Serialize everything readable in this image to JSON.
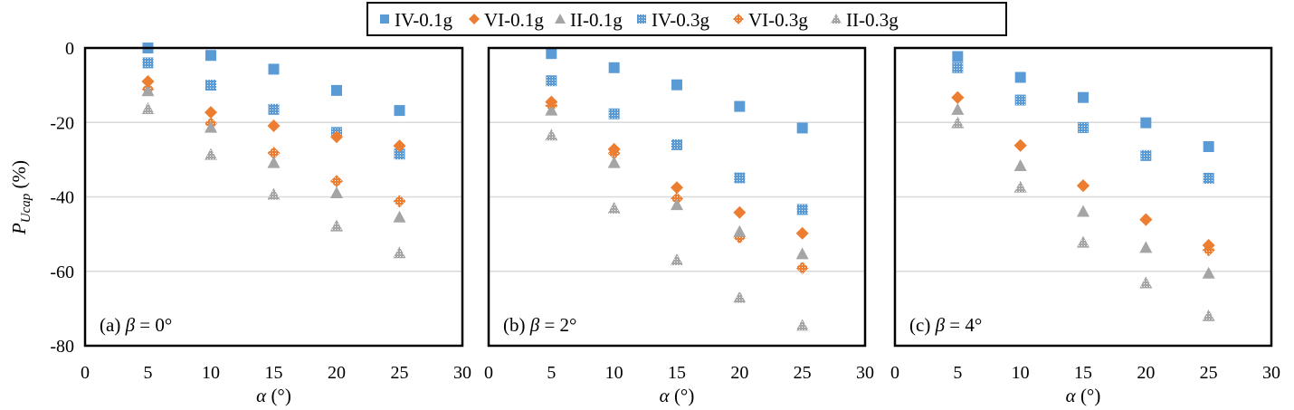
{
  "chart_data": [
    {
      "type": "scatter",
      "panel_label": "(a)",
      "panel_param": "β = 0°",
      "panel_label_text": "(a) β = 0°",
      "xlabel": "α (°)",
      "ylabel": "P_Ucap (%)",
      "xlim": [
        0,
        30
      ],
      "ylim": [
        -80,
        0
      ],
      "xticks": [
        0,
        5,
        10,
        15,
        20,
        25,
        30
      ],
      "yticks": [
        0,
        -20,
        -40,
        -60,
        -80
      ],
      "grid": "horizontal",
      "x": [
        5,
        10,
        15,
        20,
        25
      ],
      "series": [
        {
          "name": "IV-0.1g",
          "values": [
            0,
            -2,
            -5.7,
            -11.4,
            -16.8
          ]
        },
        {
          "name": "VI-0.1g",
          "values": [
            -9,
            -17.3,
            -20.9,
            -23.9,
            -26.3
          ]
        },
        {
          "name": "II-0.1g",
          "values": [
            -11.5,
            -21.3,
            -30.8,
            -38.9,
            -45.4
          ]
        },
        {
          "name": "IV-0.3g",
          "values": [
            -4,
            -10,
            -16.5,
            -22.7,
            -28.5
          ]
        },
        {
          "name": "VI-0.3g",
          "values": [
            -11,
            -20.3,
            -28.2,
            -35.8,
            -41.2
          ]
        },
        {
          "name": "II-0.3g",
          "values": [
            -16.3,
            -28.6,
            -39.3,
            -47.8,
            -55
          ]
        }
      ]
    },
    {
      "type": "scatter",
      "panel_label": "(b)",
      "panel_param": "β = 2°",
      "panel_label_text": "(b) β = 2°",
      "xlabel": "α (°)",
      "ylabel": "",
      "xlim": [
        0,
        30
      ],
      "ylim": [
        -80,
        0
      ],
      "xticks": [
        0,
        5,
        10,
        15,
        20,
        25,
        30
      ],
      "yticks": [
        0,
        -20,
        -40,
        -60,
        -80
      ],
      "grid": "horizontal",
      "x": [
        5,
        10,
        15,
        20,
        25
      ],
      "series": [
        {
          "name": "IV-0.1g",
          "values": [
            -1.5,
            -5.3,
            -9.9,
            -15.7,
            -21.5
          ]
        },
        {
          "name": "VI-0.1g",
          "values": [
            -14.5,
            -27.2,
            -37.5,
            -44.2,
            -49.8
          ]
        },
        {
          "name": "II-0.1g",
          "values": [
            -16.7,
            -30.8,
            -42.1,
            -49.3,
            -55.3
          ]
        },
        {
          "name": "IV-0.3g",
          "values": [
            -8.8,
            -17.7,
            -26,
            -34.9,
            -43.4
          ]
        },
        {
          "name": "VI-0.3g",
          "values": [
            -15.5,
            -28.3,
            -40.5,
            -50.9,
            -59.1
          ]
        },
        {
          "name": "II-0.3g",
          "values": [
            -23.4,
            -43,
            -56.9,
            -67,
            -74.5
          ]
        }
      ]
    },
    {
      "type": "scatter",
      "panel_label": "(c)",
      "panel_param": "β = 4°",
      "panel_label_text": "(c) β = 4°",
      "xlabel": "α (°)",
      "ylabel": "",
      "xlim": [
        0,
        30
      ],
      "ylim": [
        -80,
        0
      ],
      "xticks": [
        0,
        5,
        10,
        15,
        20,
        25,
        30
      ],
      "yticks": [
        0,
        -20,
        -40,
        -60,
        -80
      ],
      "grid": "horizontal",
      "x": [
        5,
        10,
        15,
        20,
        25
      ],
      "series": [
        {
          "name": "IV-0.1g",
          "values": [
            -2.3,
            -7.9,
            -13.3,
            -20.1,
            -26.5
          ]
        },
        {
          "name": "VI-0.1g",
          "values": [
            -13.3,
            -26.2,
            -37,
            -46.1,
            -53
          ]
        },
        {
          "name": "II-0.1g",
          "values": [
            -16.5,
            -31.6,
            -43.9,
            -53.6,
            -60.5
          ]
        },
        {
          "name": "IV-0.3g",
          "values": [
            -5.3,
            -14,
            -21.4,
            -28.9,
            -35
          ]
        },
        {
          "name": "VI-0.3g",
          "values": [
            -13.3,
            -26.2,
            -37,
            -46.1,
            -54.3
          ]
        },
        {
          "name": "II-0.3g",
          "values": [
            -20.1,
            -37.4,
            -52.2,
            -63.1,
            -71.9
          ]
        }
      ]
    }
  ],
  "legend": {
    "placement": "top-center",
    "entries": [
      {
        "name": "IV-0.1g",
        "marker": "square",
        "fill": "solid",
        "color": "#5B9BD5"
      },
      {
        "name": "VI-0.1g",
        "marker": "diamond",
        "fill": "solid",
        "color": "#ED7D31"
      },
      {
        "name": "II-0.1g",
        "marker": "triangle",
        "fill": "solid",
        "color": "#A5A5A5"
      },
      {
        "name": "IV-0.3g",
        "marker": "square",
        "fill": "pattern",
        "color": "#5B9BD5"
      },
      {
        "name": "VI-0.3g",
        "marker": "diamond",
        "fill": "pattern",
        "color": "#ED7D31"
      },
      {
        "name": "II-0.3g",
        "marker": "triangle",
        "fill": "pattern",
        "color": "#A5A5A5"
      }
    ]
  },
  "labels": {
    "ylabel_main": "P",
    "ylabel_sub": "Ucap",
    "ylabel_unit": " (%)",
    "xlabel_main": "α",
    "xlabel_unit": " (°)"
  },
  "colors": {
    "grid": "#D9D9D9",
    "frame": "#000000"
  }
}
